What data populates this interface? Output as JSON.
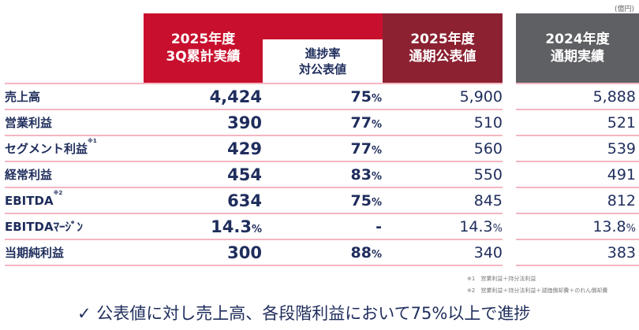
{
  "unit": "(億円)",
  "headers": {
    "col1": [
      "2025年度",
      "3Q累計実績"
    ],
    "col2": [
      "進捗率",
      "対公表値"
    ],
    "col3": [
      "2025年度",
      "通期公表値"
    ],
    "col4": [
      "2024年度",
      "通期実績"
    ]
  },
  "colors": {
    "col1": "#c8102e",
    "col3": "#8b2131",
    "col4": "#5f6064",
    "text": "#1f2d5c",
    "rule": "#f4b6c1"
  },
  "rows": [
    {
      "label": "売上高",
      "note": "",
      "actual": "4,424",
      "actual_unit": "",
      "progress": "75",
      "progress_unit": "%",
      "forecast": "5,900",
      "forecast_unit": "",
      "prev": "5,888",
      "prev_unit": ""
    },
    {
      "label": "営業利益",
      "note": "",
      "actual": "390",
      "actual_unit": "",
      "progress": "77",
      "progress_unit": "%",
      "forecast": "510",
      "forecast_unit": "",
      "prev": "521",
      "prev_unit": ""
    },
    {
      "label": "セグメント利益",
      "note": "※1",
      "actual": "429",
      "actual_unit": "",
      "progress": "77",
      "progress_unit": "%",
      "forecast": "560",
      "forecast_unit": "",
      "prev": "539",
      "prev_unit": ""
    },
    {
      "label": "経常利益",
      "note": "",
      "actual": "454",
      "actual_unit": "",
      "progress": "83",
      "progress_unit": "%",
      "forecast": "550",
      "forecast_unit": "",
      "prev": "491",
      "prev_unit": ""
    },
    {
      "label": "EBITDA",
      "note": "※2",
      "actual": "634",
      "actual_unit": "",
      "progress": "75",
      "progress_unit": "%",
      "forecast": "845",
      "forecast_unit": "",
      "prev": "812",
      "prev_unit": ""
    },
    {
      "label": "EBITDAﾏｰｼﾞﾝ",
      "note": "",
      "actual": "14.3",
      "actual_unit": "%",
      "progress": "-",
      "progress_unit": "",
      "forecast": "14.3",
      "forecast_unit": "%",
      "prev": "13.8",
      "prev_unit": "%"
    },
    {
      "label": "当期純利益",
      "note": "",
      "actual": "300",
      "actual_unit": "",
      "progress": "88",
      "progress_unit": "%",
      "forecast": "340",
      "forecast_unit": "",
      "prev": "383",
      "prev_unit": ""
    }
  ],
  "footnotes": [
    "※1　営業利益＋持分法利益",
    "※2　営業利益＋持分法利益＋減価償却費＋のれん償却費"
  ],
  "summary": "✓ 公表値に対し売上高、各段階利益において75%以上で進捗"
}
